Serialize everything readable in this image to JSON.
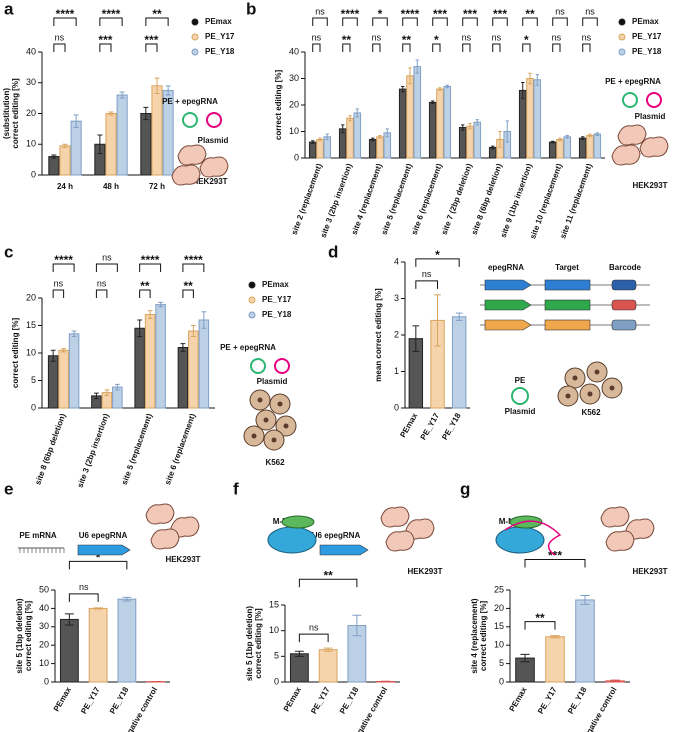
{
  "chart_data": [
    {
      "type": "bar",
      "panel": "a",
      "ylabel": [
        "correct editing [%]",
        "(substitution)"
      ],
      "categories": [
        "24 h",
        "48 h",
        "72 h"
      ],
      "series": [
        {
          "name": "PEmax",
          "color": "#555555",
          "values": [
            6,
            10,
            20
          ],
          "errors": [
            0.5,
            3,
            2
          ]
        },
        {
          "name": "PE_Y17",
          "color": "#f6d4ab",
          "values": [
            9.5,
            20,
            29
          ],
          "errors": [
            0.5,
            0.5,
            2.5
          ]
        },
        {
          "name": "PE_Y18",
          "color": "#bcd0e6",
          "values": [
            17.5,
            26,
            27.5
          ],
          "errors": [
            2,
            1,
            1.5
          ]
        }
      ],
      "brackets": [
        [
          "ns",
          "****"
        ],
        [
          "***",
          "****"
        ],
        [
          "***",
          "**"
        ]
      ],
      "ylim": [
        0,
        40
      ],
      "yticks": [
        0,
        10,
        20,
        30,
        40
      ],
      "labels": [
        "PE + epegRNA",
        "Plasmid",
        "HEK293T"
      ]
    },
    {
      "type": "bar",
      "panel": "b",
      "ylabel": [
        "correct editing [%]"
      ],
      "categories": [
        "site 2 (replacement)",
        "site 3 (2bp insertion)",
        "site 4 (replacement)",
        "site 5 (replacement)",
        "site 6 (replacement)",
        "site 7 (2bp deletion)",
        "site 8 (6bp deletion)",
        "site 9 (1bp insertion)",
        "site 10 (replacement)",
        "site 11 (replacement)"
      ],
      "series": [
        {
          "name": "PEmax",
          "color": "#555555",
          "values": [
            6,
            11,
            7,
            26,
            21,
            11.5,
            4,
            25.5,
            6,
            7.5
          ],
          "errors": [
            0.5,
            1.5,
            0.5,
            1,
            0.5,
            1,
            0.5,
            3,
            0.3,
            0.5
          ]
        },
        {
          "name": "PE_Y17",
          "color": "#f6d4ab",
          "values": [
            7,
            15,
            8,
            31,
            26,
            12,
            7,
            30,
            7,
            8.5
          ],
          "errors": [
            0.5,
            1,
            0.5,
            3,
            0.5,
            1,
            3,
            2,
            0.5,
            0.5
          ]
        },
        {
          "name": "PE_Y18",
          "color": "#bcd0e6",
          "values": [
            8,
            17,
            9.5,
            34.5,
            27,
            13.5,
            10,
            29.5,
            8,
            9
          ],
          "errors": [
            1,
            1.5,
            1.5,
            2.5,
            0.5,
            1,
            4,
            2,
            0.5,
            0.5
          ]
        }
      ],
      "brackets": [
        [
          "ns",
          "ns"
        ],
        [
          "**",
          "****"
        ],
        [
          "ns",
          "*"
        ],
        [
          "**",
          "****"
        ],
        [
          "*",
          "***"
        ],
        [
          "ns",
          "***"
        ],
        [
          "ns",
          "***"
        ],
        [
          "*",
          "**"
        ],
        [
          "ns",
          "ns"
        ],
        [
          "ns",
          "ns"
        ]
      ],
      "ylim": [
        0,
        40
      ],
      "yticks": [
        0,
        10,
        20,
        30,
        40
      ],
      "labels": [
        "PE + epegRNA",
        "Plasmid",
        "HEK293T"
      ]
    },
    {
      "type": "bar",
      "panel": "c",
      "ylabel": [
        "correct editing [%]"
      ],
      "categories": [
        "site 8 (6bp deletion)",
        "site 3 (2bp insertion)",
        "site 5 (replacement)",
        "site 6 (replacement)"
      ],
      "series": [
        {
          "name": "PEmax",
          "color": "#555555",
          "values": [
            9.5,
            2.2,
            14.5,
            11
          ],
          "errors": [
            1,
            0.5,
            1.5,
            0.7
          ]
        },
        {
          "name": "PE_Y17",
          "color": "#f6d4ab",
          "values": [
            10.5,
            2.8,
            17,
            14
          ],
          "errors": [
            0.3,
            0.5,
            0.7,
            1
          ]
        },
        {
          "name": "PE_Y18",
          "color": "#bcd0e6",
          "values": [
            13.5,
            3.8,
            18.8,
            16
          ],
          "errors": [
            0.5,
            0.5,
            0.4,
            1.5
          ]
        }
      ],
      "brackets": [
        [
          "ns",
          "****"
        ],
        [
          "ns",
          "ns"
        ],
        [
          "**",
          "****"
        ],
        [
          "**",
          "****"
        ]
      ],
      "ylim": [
        0,
        20
      ],
      "yticks": [
        0,
        5,
        10,
        15,
        20
      ],
      "labels": [
        "PE + epegRNA",
        "Plasmid",
        "K562"
      ]
    },
    {
      "type": "bar",
      "panel": "d",
      "ylabel": [
        "mean correct editing [%]"
      ],
      "categories": [
        "PEmax",
        "PE_Y17",
        "PE_Y18"
      ],
      "values": [
        1.9,
        2.4,
        2.5
      ],
      "errors": [
        0.35,
        0.7,
        0.1
      ],
      "colors": [
        "#555555",
        "#f6d4ab",
        "#bcd0e6"
      ],
      "brackets": [
        [
          "ns",
          "*"
        ]
      ],
      "ylim": [
        0,
        4
      ],
      "yticks": [
        0,
        1,
        2,
        3,
        4
      ],
      "labels": [
        "epegRNA",
        "Target",
        "Barcode",
        "PE",
        "Plasmid",
        "K562"
      ]
    },
    {
      "type": "bar",
      "panel": "e",
      "ylabel": [
        "correct editing [%]",
        "site 5 (1bp deletion)"
      ],
      "categories": [
        "PEmax",
        "PE_Y17",
        "PE_Y18",
        "negative control"
      ],
      "values": [
        34,
        40,
        45,
        0.2
      ],
      "errors": [
        3,
        0.3,
        1,
        0.1
      ],
      "colors": [
        "#555555",
        "#f6d4ab",
        "#bcd0e6",
        "#f4a6a0"
      ],
      "brackets": [
        [
          "ns",
          "*"
        ]
      ],
      "ylim": [
        0,
        50
      ],
      "yticks": [
        0,
        10,
        20,
        30,
        40,
        50
      ],
      "labels": [
        "PE mRNA",
        "U6 epegRNA",
        "HEK293T"
      ]
    },
    {
      "type": "bar",
      "panel": "f",
      "ylabel": [
        "correct editing [%]",
        "site 5 (1bp deletion)"
      ],
      "categories": [
        "PEmax",
        "PE_Y17",
        "PE_Y18",
        "negative control"
      ],
      "values": [
        5.5,
        6.3,
        11,
        0.1
      ],
      "errors": [
        0.5,
        0.3,
        2,
        0.05
      ],
      "colors": [
        "#555555",
        "#f6d4ab",
        "#bcd0e6",
        "#f4a6a0"
      ],
      "brackets": [
        [
          "ns",
          "**"
        ]
      ],
      "ylim": [
        0,
        15
      ],
      "yticks": [
        0,
        5,
        10,
        15
      ],
      "labels": [
        "M-MLV RT",
        "nCas9",
        "U6 epegRNA",
        "HEK293T"
      ]
    },
    {
      "type": "bar",
      "panel": "g",
      "ylabel": [
        "correct editing [%]",
        "site 4 (replacement)"
      ],
      "categories": [
        "PEmax",
        "PE_Y17",
        "PE_Y18",
        "negative control"
      ],
      "values": [
        6.5,
        12.3,
        22.3,
        0.3
      ],
      "errors": [
        1,
        0.3,
        1.2,
        0.2
      ],
      "colors": [
        "#555555",
        "#f6d4ab",
        "#bcd0e6",
        "#f4a6a0"
      ],
      "brackets": [
        [
          "**",
          "***"
        ]
      ],
      "ylim": [
        0,
        25
      ],
      "yticks": [
        0,
        5,
        10,
        15,
        20,
        25
      ],
      "labels": [
        "M-MLV RT",
        "nCas9",
        "HEK293T"
      ]
    }
  ]
}
